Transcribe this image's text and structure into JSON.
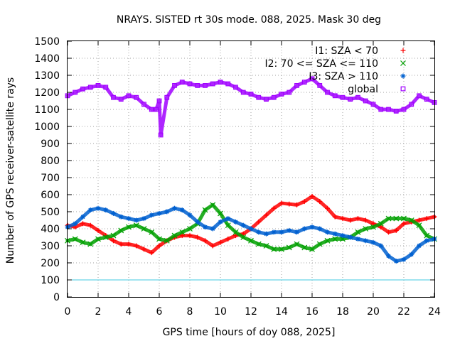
{
  "chart_data": {
    "type": "scatter",
    "title": "NRAYS. SISTED rt 30s mode. 088, 2025. Mask 30 deg",
    "xlabel": "GPS time [hours of doy 088, 2025]",
    "ylabel": "Number of GPS receiver-satellite rays",
    "xlim": [
      0,
      24
    ],
    "ylim": [
      0,
      1500
    ],
    "xticks": [
      0,
      2,
      4,
      6,
      8,
      10,
      12,
      14,
      16,
      18,
      20,
      22,
      24
    ],
    "yticks": [
      0,
      100,
      200,
      300,
      400,
      500,
      600,
      700,
      800,
      900,
      1000,
      1100,
      1200,
      1300,
      1400,
      1500
    ],
    "grid": true,
    "legend_position": "top-right",
    "series": [
      {
        "name": "I1: SZA < 70",
        "marker": "+",
        "color": "#ff0000",
        "x": [
          0,
          0.5,
          1,
          1.5,
          2,
          2.5,
          3,
          3.5,
          4,
          4.5,
          5,
          5.5,
          6,
          6.5,
          7,
          7.5,
          8,
          8.5,
          9,
          9.5,
          10,
          10.5,
          11,
          11.5,
          12,
          12.5,
          13,
          13.5,
          14,
          14.5,
          15,
          15.5,
          16,
          16.5,
          17,
          17.5,
          18,
          18.5,
          19,
          19.5,
          20,
          20.5,
          21,
          21.5,
          22,
          22.5,
          23,
          23.5,
          24
        ],
        "y": [
          420,
          410,
          430,
          420,
          390,
          360,
          330,
          310,
          310,
          300,
          280,
          260,
          300,
          330,
          350,
          360,
          360,
          350,
          330,
          300,
          320,
          340,
          360,
          370,
          400,
          440,
          480,
          520,
          550,
          545,
          540,
          560,
          590,
          560,
          520,
          470,
          460,
          450,
          460,
          450,
          430,
          410,
          380,
          390,
          430,
          440,
          450,
          460,
          470
        ]
      },
      {
        "name": "I2: 70 <= SZA <= 110",
        "marker": "x",
        "color": "#00a000",
        "x": [
          0,
          0.5,
          1,
          1.5,
          2,
          2.5,
          3,
          3.5,
          4,
          4.5,
          5,
          5.5,
          6,
          6.5,
          7,
          7.5,
          8,
          8.5,
          9,
          9.5,
          10,
          10.5,
          11,
          11.5,
          12,
          12.5,
          13,
          13.5,
          14,
          14.5,
          15,
          15.5,
          16,
          16.5,
          17,
          17.5,
          18,
          18.5,
          19,
          19.5,
          20,
          20.5,
          21,
          21.5,
          22,
          22.5,
          23,
          23.5,
          24
        ],
        "y": [
          330,
          340,
          320,
          310,
          340,
          350,
          360,
          390,
          410,
          420,
          400,
          380,
          340,
          330,
          360,
          380,
          400,
          430,
          510,
          540,
          490,
          420,
          380,
          350,
          330,
          310,
          300,
          280,
          280,
          290,
          310,
          290,
          280,
          310,
          330,
          340,
          340,
          350,
          380,
          400,
          410,
          430,
          460,
          460,
          460,
          450,
          420,
          360,
          340
        ]
      },
      {
        "name": "I3: SZA > 110",
        "marker": "*",
        "color": "#0060d0",
        "x": [
          0,
          0.5,
          1,
          1.5,
          2,
          2.5,
          3,
          3.5,
          4,
          4.5,
          5,
          5.5,
          6,
          6.5,
          7,
          7.5,
          8,
          8.5,
          9,
          9.5,
          10,
          10.5,
          11,
          11.5,
          12,
          12.5,
          13,
          13.5,
          14,
          14.5,
          15,
          15.5,
          16,
          16.5,
          17,
          17.5,
          18,
          18.5,
          19,
          19.5,
          20,
          20.5,
          21,
          21.5,
          22,
          22.5,
          23,
          23.5,
          24
        ],
        "y": [
          410,
          430,
          470,
          510,
          520,
          510,
          490,
          470,
          460,
          450,
          460,
          480,
          490,
          500,
          520,
          510,
          480,
          440,
          410,
          400,
          440,
          460,
          440,
          420,
          400,
          380,
          370,
          380,
          380,
          390,
          380,
          400,
          410,
          400,
          380,
          370,
          360,
          350,
          340,
          330,
          320,
          300,
          240,
          210,
          220,
          250,
          300,
          330,
          340
        ]
      },
      {
        "name": "global",
        "marker": "square",
        "color": "#a000ff",
        "x": [
          0,
          0.5,
          1,
          1.5,
          2,
          2.5,
          3,
          3.5,
          4,
          4.5,
          5,
          5.5,
          5.8,
          6,
          6.1,
          6.5,
          7,
          7.5,
          8,
          8.5,
          9,
          9.5,
          10,
          10.5,
          11,
          11.5,
          12,
          12.5,
          13,
          13.5,
          14,
          14.5,
          15,
          15.5,
          16,
          16.5,
          17,
          17.5,
          18,
          18.5,
          19,
          19.5,
          20,
          20.5,
          21,
          21.5,
          22,
          22.5,
          23,
          23.5,
          24
        ],
        "y": [
          1180,
          1200,
          1220,
          1230,
          1240,
          1230,
          1170,
          1160,
          1180,
          1170,
          1130,
          1100,
          1100,
          1150,
          950,
          1170,
          1240,
          1260,
          1250,
          1240,
          1240,
          1250,
          1260,
          1250,
          1230,
          1200,
          1190,
          1170,
          1160,
          1170,
          1190,
          1200,
          1240,
          1260,
          1280,
          1240,
          1200,
          1180,
          1170,
          1160,
          1170,
          1150,
          1130,
          1100,
          1100,
          1090,
          1100,
          1130,
          1180,
          1160,
          1140
        ]
      }
    ],
    "reference_lines": [
      {
        "y": 100,
        "color": "#40c8e0"
      }
    ]
  }
}
